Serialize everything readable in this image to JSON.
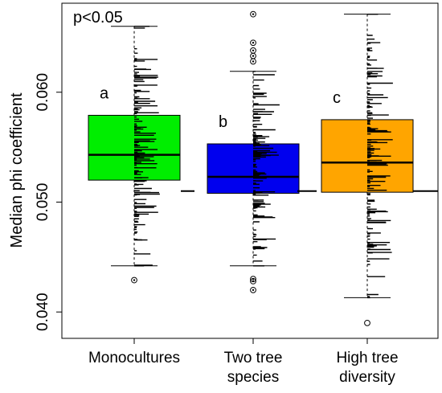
{
  "chart_data": {
    "type": "box",
    "title": "",
    "xlabel": "",
    "ylabel": "Median phi coefficient",
    "ylim": [
      0.0376,
      0.0681
    ],
    "yticks": [
      "0.040",
      "0.050",
      "0.060"
    ],
    "annotation": "p<0.05",
    "grid": false,
    "legend": "none",
    "categories": [
      {
        "label_lines": [
          "Monocultures"
        ],
        "letter": "a",
        "color": "#00ee00",
        "whisker_low": 0.0442,
        "q1": 0.052,
        "median": 0.0543,
        "q3": 0.0579,
        "whisker_high": 0.066,
        "outliers": [
          0.0429
        ]
      },
      {
        "label_lines": [
          "Two tree",
          "species"
        ],
        "letter": "b",
        "color": "#0000ee",
        "whisker_low": 0.0442,
        "q1": 0.0508,
        "median": 0.0523,
        "q3": 0.0553,
        "whisker_high": 0.0619,
        "outliers": [
          0.042,
          0.0428,
          0.043,
          0.0628,
          0.0633,
          0.0638,
          0.0645,
          0.0671
        ]
      },
      {
        "label_lines": [
          "High tree",
          "diversity"
        ],
        "letter": "c",
        "color": "#ffa500",
        "whisker_low": 0.0413,
        "q1": 0.0509,
        "median": 0.0536,
        "q3": 0.0575,
        "whisker_high": 0.0671,
        "outliers": [
          0.039
        ]
      }
    ],
    "reference_line": 0.051
  }
}
